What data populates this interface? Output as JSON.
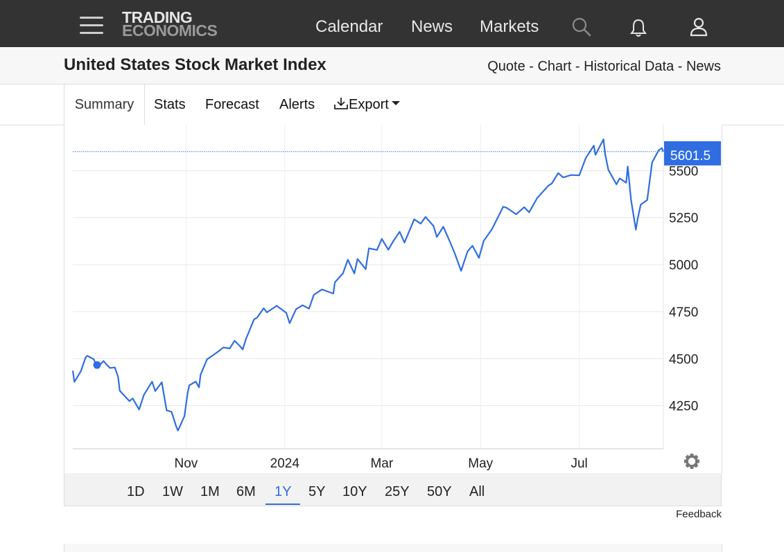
{
  "header": {
    "logo_line1": "TRADING",
    "logo_line2": "ECONOMICS",
    "nav": [
      "Calendar",
      "News",
      "Markets"
    ],
    "icons": [
      "menu-icon",
      "search-icon",
      "bell-icon",
      "user-icon"
    ]
  },
  "title": {
    "text": "United States Stock Market Index",
    "links": [
      "Quote",
      "Chart",
      "Historical Data",
      "News"
    ],
    "separator": " - "
  },
  "tabs": [
    "Summary",
    "Stats",
    "Forecast",
    "Alerts",
    "Export"
  ],
  "chart_data": {
    "type": "line",
    "title": "",
    "xlabel": "",
    "ylabel": "",
    "x_ticks": [
      "Nov",
      "2024",
      "Mar",
      "May",
      "Jul"
    ],
    "y_ticks": [
      4250,
      4500,
      4750,
      5000,
      5250,
      5500
    ],
    "ylim": [
      4020,
      5730
    ],
    "grid": true,
    "last_value_label": "5601.5",
    "line_color": "#2f6de1",
    "series": [
      {
        "x": [
          "2023-08-23",
          "2023-08-24",
          "2023-08-28",
          "2023-08-31",
          "2023-09-01",
          "2023-09-05",
          "2023-09-07",
          "2023-09-11",
          "2023-09-13",
          "2023-09-15",
          "2023-09-18",
          "2023-09-20",
          "2023-09-21",
          "2023-09-22",
          "2023-09-27",
          "2023-09-29",
          "2023-10-03",
          "2023-10-06",
          "2023-10-11",
          "2023-10-13",
          "2023-10-17",
          "2023-10-20",
          "2023-10-23",
          "2023-10-26",
          "2023-10-27",
          "2023-10-31",
          "2023-11-02",
          "2023-11-03",
          "2023-11-07",
          "2023-11-09",
          "2023-11-10",
          "2023-11-14",
          "2023-11-17",
          "2023-11-21",
          "2023-11-24",
          "2023-11-28",
          "2023-12-01",
          "2023-12-04",
          "2023-12-06",
          "2023-12-08",
          "2023-12-13",
          "2023-12-15",
          "2023-12-19",
          "2023-12-21",
          "2023-12-27",
          "2024-01-02",
          "2024-01-04",
          "2024-01-08",
          "2024-01-12",
          "2024-01-16",
          "2024-01-19",
          "2024-01-24",
          "2024-01-31",
          "2024-02-01",
          "2024-02-06",
          "2024-02-09",
          "2024-02-13",
          "2024-02-15",
          "2024-02-20",
          "2024-02-22",
          "2024-02-27",
          "2024-03-01",
          "2024-03-05",
          "2024-03-08",
          "2024-03-12",
          "2024-03-15",
          "2024-03-21",
          "2024-03-25",
          "2024-03-28",
          "2024-04-02",
          "2024-04-04",
          "2024-04-08",
          "2024-04-12",
          "2024-04-15",
          "2024-04-19",
          "2024-04-23",
          "2024-04-26",
          "2024-04-30",
          "2024-05-03",
          "2024-05-08",
          "2024-05-15",
          "2024-05-17",
          "2024-05-23",
          "2024-05-28",
          "2024-05-31",
          "2024-06-05",
          "2024-06-12",
          "2024-06-14",
          "2024-06-18",
          "2024-06-21",
          "2024-06-26",
          "2024-07-01",
          "2024-07-05",
          "2024-07-10",
          "2024-07-11",
          "2024-07-16",
          "2024-07-17",
          "2024-07-19",
          "2024-07-24",
          "2024-07-26",
          "2024-07-30",
          "2024-07-31",
          "2024-08-02",
          "2024-08-05",
          "2024-08-06",
          "2024-08-08",
          "2024-08-12",
          "2024-08-15",
          "2024-08-19",
          "2024-08-21",
          "2024-08-22"
        ],
        "values": [
          4436,
          4376,
          4433,
          4508,
          4515,
          4497,
          4451,
          4487,
          4467,
          4450,
          4453,
          4402,
          4330,
          4320,
          4274,
          4288,
          4229,
          4308,
          4377,
          4327,
          4374,
          4224,
          4217,
          4137,
          4117,
          4194,
          4318,
          4358,
          4378,
          4347,
          4415,
          4496,
          4514,
          4538,
          4559,
          4554,
          4595,
          4569,
          4549,
          4604,
          4708,
          4719,
          4768,
          4746,
          4781,
          4743,
          4688,
          4763,
          4784,
          4766,
          4840,
          4868,
          4846,
          4906,
          4954,
          5026,
          4953,
          5030,
          4976,
          5087,
          5078,
          5137,
          5079,
          5124,
          5175,
          5117,
          5241,
          5218,
          5254,
          5205,
          5147,
          5202,
          5123,
          5061,
          4967,
          5071,
          5100,
          5036,
          5127,
          5188,
          5308,
          5303,
          5268,
          5306,
          5278,
          5354,
          5421,
          5431,
          5487,
          5464,
          5477,
          5475,
          5567,
          5633,
          5584,
          5667,
          5588,
          5505,
          5427,
          5459,
          5436,
          5522,
          5346,
          5186,
          5240,
          5319,
          5344,
          5543,
          5608,
          5620,
          5601.5
        ]
      }
    ]
  },
  "range_buttons": [
    "1D",
    "1W",
    "1M",
    "6M",
    "1Y",
    "5Y",
    "10Y",
    "25Y",
    "50Y",
    "All"
  ],
  "range_active": "1Y",
  "feedback": "Feedback"
}
